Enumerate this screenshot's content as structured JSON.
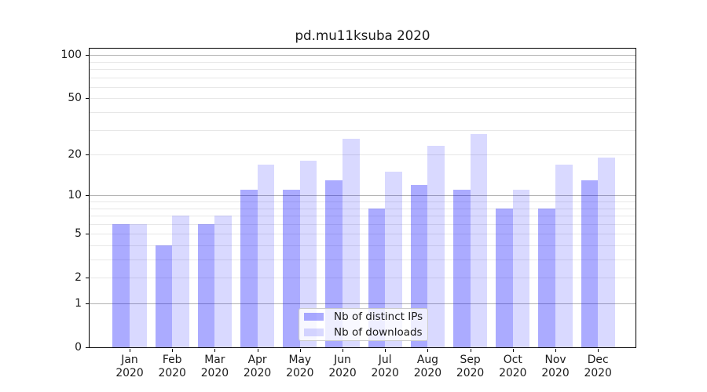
{
  "title": "pd.mu11ksuba 2020",
  "chart_data": {
    "type": "bar",
    "title": "pd.mu11ksuba 2020",
    "categories": [
      "Jan 2020",
      "Feb 2020",
      "Mar 2020",
      "Apr 2020",
      "May 2020",
      "Jun 2020",
      "Jul 2020",
      "Aug 2020",
      "Sep 2020",
      "Oct 2020",
      "Nov 2020",
      "Dec 2020"
    ],
    "series": [
      {
        "name": "Nb of distinct IPs",
        "values": [
          6,
          4,
          6,
          11,
          11,
          13,
          8,
          12,
          11,
          8,
          8,
          13
        ],
        "color": "rgba(0,0,255,0.33)"
      },
      {
        "name": "Nb of downloads",
        "values": [
          6,
          7,
          7,
          17,
          18,
          26,
          15,
          23,
          28,
          11,
          17,
          19
        ],
        "color": "rgba(0,0,255,0.15)"
      }
    ],
    "xlabel": "",
    "ylabel": "",
    "yscale": "log1p",
    "ylim": [
      0,
      113
    ],
    "yticks": [
      0,
      1,
      2,
      5,
      10,
      20,
      50,
      100
    ],
    "major_gridlines": [
      1,
      10,
      100
    ],
    "minor_gridlines": [
      2,
      3,
      4,
      5,
      6,
      7,
      8,
      9,
      20,
      30,
      40,
      50,
      60,
      70,
      80,
      90
    ],
    "grid": true,
    "legend_position": "lower center"
  },
  "colors": {
    "bar_distinct_ips": "rgba(0,0,255,0.33)",
    "bar_downloads": "rgba(0,0,255,0.15)",
    "major_grid": "#b2b2b2",
    "minor_grid": "#e7e7e7",
    "axis": "#000000",
    "text": "#1a1a1a"
  }
}
